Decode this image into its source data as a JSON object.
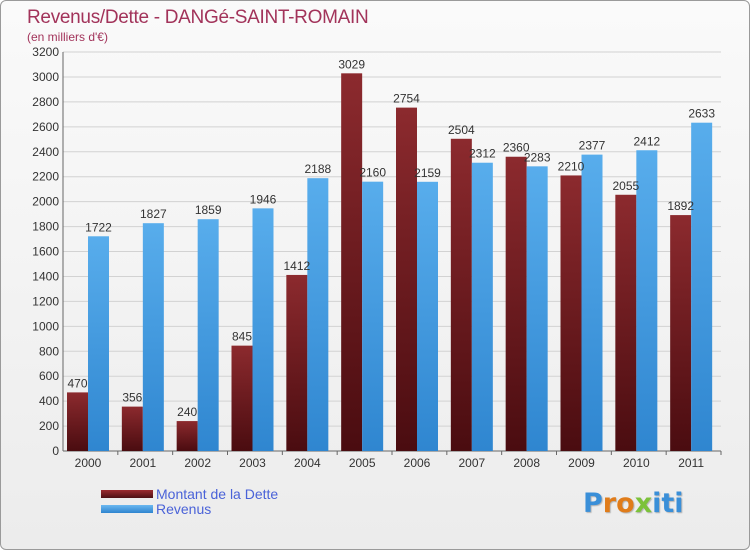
{
  "header": {
    "title": "Revenus/Dette - DANGé-SAINT-ROMAIN",
    "subtitle": "(en milliers d'€)"
  },
  "chart_data": {
    "type": "bar",
    "categories": [
      "2000",
      "2001",
      "2002",
      "2003",
      "2004",
      "2005",
      "2006",
      "2007",
      "2008",
      "2009",
      "2010",
      "2011"
    ],
    "series": [
      {
        "name": "Montant de la Dette",
        "values": [
          470,
          356,
          240,
          845,
          1412,
          3029,
          2754,
          2504,
          2360,
          2210,
          2055,
          1892
        ],
        "color": "#7a1f24"
      },
      {
        "name": "Revenus",
        "values": [
          1722,
          1827,
          1859,
          1946,
          2188,
          2160,
          2159,
          2312,
          2283,
          2377,
          2412,
          2633
        ],
        "color": "#4ea3e8"
      }
    ],
    "ylim": [
      0,
      3200
    ],
    "yticks": [
      0,
      200,
      400,
      600,
      800,
      1000,
      1200,
      1400,
      1600,
      1800,
      2000,
      2200,
      2400,
      2600,
      2800,
      3000,
      3200
    ],
    "grid": true,
    "legend": "bottom-left",
    "title": "Revenus/Dette - DANGé-SAINT-ROMAIN",
    "xlabel": "",
    "ylabel": ""
  },
  "logo": {
    "letters": [
      "P",
      "r",
      "o",
      "x",
      "i",
      "t",
      "i"
    ],
    "colors": [
      "#3a8fd8",
      "#e07c1a",
      "#e07c1a",
      "#7cc23a",
      "#3a8fd8",
      "#3a8fd8",
      "#3a8fd8"
    ]
  }
}
